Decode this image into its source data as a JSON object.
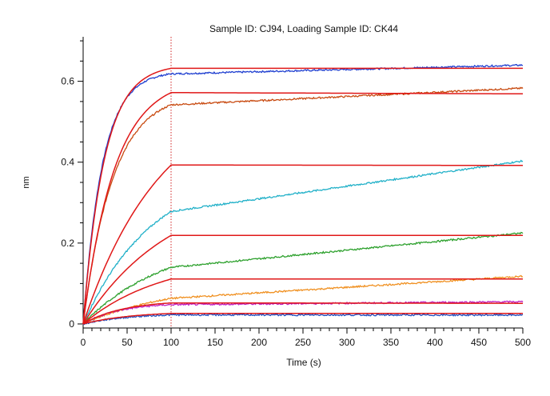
{
  "chart_data": {
    "type": "line",
    "title": "Sample ID: CJ94, Loading Sample ID: CK44",
    "xlabel": "Time (s)",
    "ylabel": "nm",
    "xlim": [
      0,
      500
    ],
    "ylim": [
      -0.01,
      0.71
    ],
    "x_ticks": [
      0,
      50,
      100,
      150,
      200,
      250,
      300,
      350,
      400,
      450,
      500
    ],
    "y_ticks": [
      0,
      0.2,
      0.4,
      0.6
    ],
    "y_tick_labels": [
      "0",
      "0.2",
      "0.4",
      "0.6"
    ],
    "association_end_marker": 100,
    "grid": false,
    "fit_color": "#e01818",
    "series": [
      {
        "color": "#1f3fd0",
        "plateau": 0.625,
        "tau": 22,
        "drift_end": 0.64
      },
      {
        "color": "#c84a10",
        "plateau": 0.572,
        "tau": 34,
        "drift_end": 0.583
      },
      {
        "color": "#20b0c8",
        "plateau": 0.39,
        "tau": 80,
        "drift_end": 0.403
      },
      {
        "color": "#2ca02c",
        "plateau": 0.215,
        "tau": 95,
        "drift_end": 0.225
      },
      {
        "color": "#f09020",
        "plateau": 0.106,
        "tau": 110,
        "drift_end": 0.118
      },
      {
        "color": "#c020c0",
        "plateau": 0.052,
        "tau": 40,
        "drift_end": 0.055
      },
      {
        "color": "#2050c0",
        "plateau": 0.026,
        "tau": 50,
        "drift_end": 0.022
      }
    ],
    "fits": [
      {
        "plateau": 0.632,
        "tau": 24,
        "dissoc_end": 0.632
      },
      {
        "plateau": 0.572,
        "tau": 36,
        "dissoc_end": 0.569
      },
      {
        "plateau": 0.393,
        "tau": 90,
        "dissoc_end": 0.392
      },
      {
        "plateau": 0.219,
        "tau": 100,
        "dissoc_end": 0.219
      },
      {
        "plateau": 0.111,
        "tau": 90,
        "dissoc_end": 0.111
      },
      {
        "plateau": 0.052,
        "tau": 45,
        "dissoc_end": 0.051
      },
      {
        "plateau": 0.026,
        "tau": 55,
        "dissoc_end": 0.026
      }
    ]
  }
}
